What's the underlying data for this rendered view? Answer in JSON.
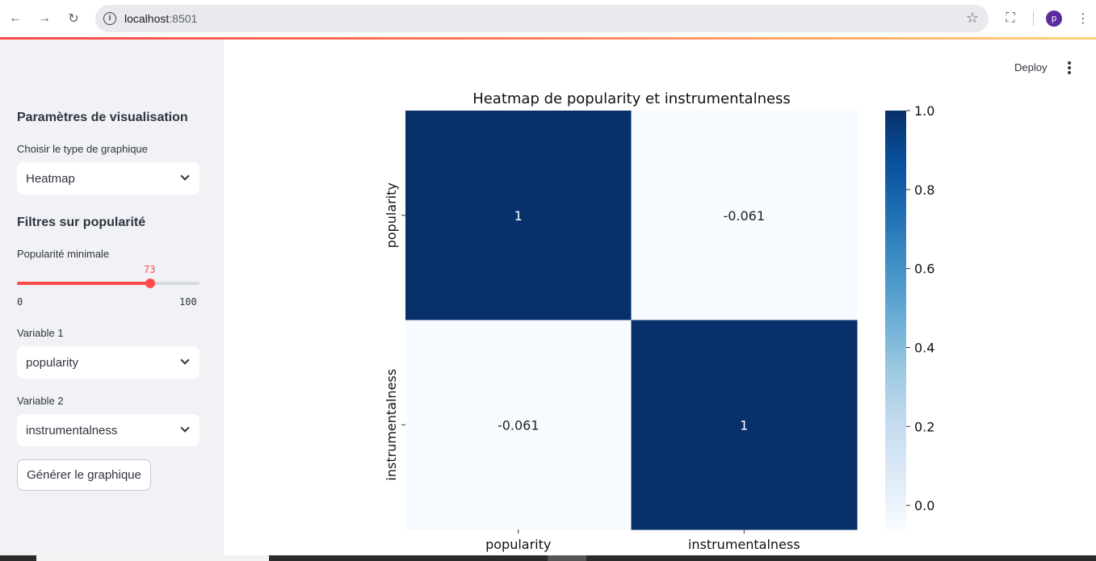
{
  "browser": {
    "url_host": "localhost",
    "url_port": ":8501",
    "profile_initial": "p"
  },
  "sidebar": {
    "section1_title": "Paramètres de visualisation",
    "chart_type_label": "Choisir le type de graphique",
    "chart_type_value": "Heatmap",
    "section2_title": "Filtres sur popularité",
    "min_pop_label": "Popularité minimale",
    "min_pop_value": "73",
    "min_pop_fraction": 0.73,
    "min_pop_min": "0",
    "min_pop_max": "100",
    "var1_label": "Variable 1",
    "var1_value": "popularity",
    "var2_label": "Variable 2",
    "var2_value": "instrumentalness",
    "generate_label": "Générer le graphique"
  },
  "header": {
    "deploy_label": "Deploy"
  },
  "colors": {
    "accent": "#ff4b4b",
    "sidebar_bg": "#f0f2f6",
    "heat_high": "#08306b",
    "heat_low": "#f7fbff"
  },
  "chart_data": {
    "type": "heatmap",
    "title": "Heatmap de popularity et instrumentalness",
    "x_labels": [
      "popularity",
      "instrumentalness"
    ],
    "y_labels": [
      "popularity",
      "instrumentalness"
    ],
    "values": [
      [
        1,
        -0.061
      ],
      [
        -0.061,
        1
      ]
    ],
    "value_labels": [
      [
        "1",
        "-0.061"
      ],
      [
        "-0.061",
        "1"
      ]
    ],
    "colorbar_ticks": [
      "1.0",
      "0.8",
      "0.6",
      "0.4",
      "0.2",
      "0.0"
    ],
    "colorbar_values": [
      1.0,
      0.8,
      0.6,
      0.4,
      0.2,
      0.0
    ],
    "vmin": -0.061,
    "vmax": 1,
    "colormap": "Blues"
  }
}
